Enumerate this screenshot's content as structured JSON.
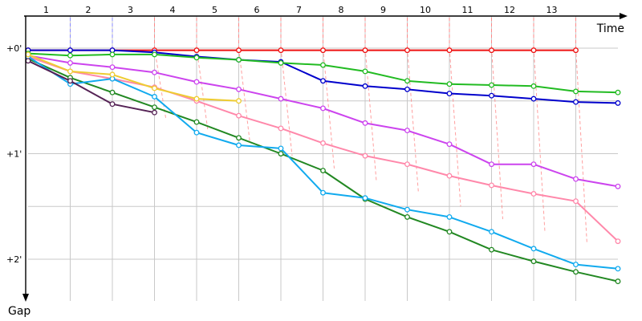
{
  "chart_data": {
    "type": "line",
    "title": "",
    "xlabel": "Time",
    "ylabel": "Gap",
    "x_tick_labels": [
      "1",
      "2",
      "3",
      "4",
      "5",
      "6",
      "7",
      "8",
      "9",
      "10",
      "11",
      "12",
      "13"
    ],
    "y_tick_labels": [
      "+0'",
      "+1'",
      "+2'"
    ],
    "xlim": [
      0,
      14.1
    ],
    "ylim": [
      0,
      2.5
    ],
    "grid": true,
    "legend": "none",
    "axis_color": "#000000",
    "grid_color": "#c8c8c8",
    "series": [
      {
        "color": "#ee1111",
        "x": [
          0,
          1,
          2,
          3,
          4,
          5,
          6,
          7,
          8,
          9,
          10,
          11,
          12,
          13
        ],
        "y": [
          0.02,
          0.02,
          0.02,
          0.02,
          0.02,
          0.02,
          0.02,
          0.02,
          0.02,
          0.02,
          0.02,
          0.02,
          0.02,
          0.02
        ]
      },
      {
        "color": "#0000cc",
        "x": [
          0,
          1,
          2,
          3,
          4,
          5,
          6,
          7,
          8,
          9,
          10,
          11,
          12,
          13,
          14
        ],
        "y": [
          0.02,
          0.02,
          0.02,
          0.04,
          0.08,
          0.11,
          0.13,
          0.31,
          0.36,
          0.39,
          0.43,
          0.45,
          0.48,
          0.51,
          0.52
        ]
      },
      {
        "color": "#22bb22",
        "x": [
          0,
          1,
          2,
          3,
          4,
          5,
          6,
          7,
          8,
          9,
          10,
          11,
          12,
          13,
          14
        ],
        "y": [
          0.05,
          0.07,
          0.06,
          0.06,
          0.09,
          0.11,
          0.14,
          0.16,
          0.22,
          0.31,
          0.34,
          0.35,
          0.36,
          0.41,
          0.42
        ]
      },
      {
        "color": "#cc44ee",
        "x": [
          0,
          1,
          2,
          3,
          4,
          5,
          6,
          7,
          8,
          9,
          10,
          11,
          12,
          13,
          14
        ],
        "y": [
          0.07,
          0.14,
          0.18,
          0.23,
          0.32,
          0.39,
          0.48,
          0.57,
          0.71,
          0.78,
          0.91,
          1.1,
          1.1,
          1.24,
          1.31
        ]
      },
      {
        "color": "#ff88aa",
        "x": [
          0,
          1,
          2,
          3,
          4,
          5,
          6,
          7,
          8,
          9,
          10,
          11,
          12,
          13,
          14
        ],
        "y": [
          0.08,
          0.22,
          0.29,
          0.37,
          0.5,
          0.64,
          0.76,
          0.9,
          1.02,
          1.1,
          1.21,
          1.3,
          1.38,
          1.45,
          1.83
        ]
      },
      {
        "color": "#228822",
        "x": [
          0,
          1,
          2,
          3,
          4,
          5,
          6,
          7,
          8,
          9,
          10,
          11,
          12,
          13,
          14
        ],
        "y": [
          0.1,
          0.28,
          0.42,
          0.56,
          0.7,
          0.85,
          1.0,
          1.16,
          1.43,
          1.6,
          1.74,
          1.91,
          2.02,
          2.12,
          2.21
        ]
      },
      {
        "color": "#11aaee",
        "x": [
          0,
          1,
          2,
          3,
          4,
          5,
          6,
          7,
          8,
          9,
          10,
          11,
          12,
          13,
          14
        ],
        "y": [
          0.08,
          0.34,
          0.29,
          0.46,
          0.8,
          0.92,
          0.95,
          1.37,
          1.42,
          1.53,
          1.6,
          1.74,
          1.9,
          2.05,
          2.09
        ]
      },
      {
        "color": "#eecc33",
        "x": [
          0,
          1,
          2,
          3,
          4,
          5
        ],
        "y": [
          0.06,
          0.22,
          0.25,
          0.38,
          0.48,
          0.5
        ]
      },
      {
        "color": "#552255",
        "x": [
          0,
          1,
          2,
          3
        ],
        "y": [
          0.12,
          0.31,
          0.53,
          0.61
        ]
      }
    ],
    "transitions": {
      "color": "#ff8888",
      "laps": [
        1,
        2,
        3,
        4,
        5,
        6,
        7,
        8,
        9,
        10,
        11,
        12,
        13
      ]
    }
  }
}
